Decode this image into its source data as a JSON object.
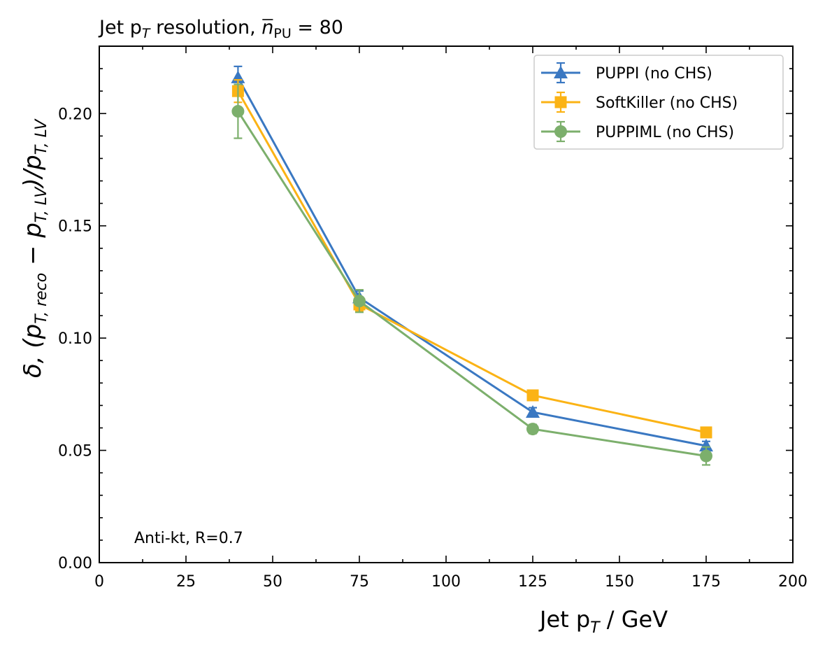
{
  "chart_data": {
    "type": "line",
    "title_main": "Jet p",
    "title_sub": "T",
    "title_rest": " resolution, ",
    "title_n": "n",
    "title_pu": "PU",
    "title_value": " = 80",
    "xlabel_prefix": "Jet p",
    "xlabel_sub": "T",
    "xlabel_suffix": " / GeV",
    "ylabel": "δ, (p",
    "ylabel_sub1": "T, reco",
    "ylabel_mid": " − p",
    "ylabel_sub2": "T, LV",
    "ylabel_close": ")/p",
    "ylabel_sub3": "T, LV",
    "xlim": [
      0,
      200
    ],
    "ylim": [
      0,
      0.23
    ],
    "xticks": [
      0,
      25,
      50,
      75,
      100,
      125,
      150,
      175,
      200
    ],
    "xtick_labels": [
      "0",
      "25",
      "50",
      "75",
      "100",
      "125",
      "150",
      "175",
      "200"
    ],
    "yticks": [
      0,
      0.05,
      0.1,
      0.15,
      0.2
    ],
    "ytick_labels": [
      "0.00",
      "0.05",
      "0.10",
      "0.15",
      "0.20"
    ],
    "grid": false,
    "legend_position": "top-right",
    "annotation": "Anti-kt, R=0.7",
    "x": [
      40,
      75,
      125,
      175
    ],
    "series": [
      {
        "name": "PUPPI (no CHS)",
        "color": "#3a78c2",
        "marker": "triangle",
        "values": [
          0.216,
          0.118,
          0.067,
          0.052
        ],
        "errors": [
          0.005,
          0.003,
          0.002,
          0.002
        ]
      },
      {
        "name": "SoftKiller (no CHS)",
        "color": "#fbb315",
        "marker": "square",
        "values": [
          0.21,
          0.115,
          0.0745,
          0.058
        ],
        "errors": [
          0.005,
          0.003,
          0.001,
          0.001
        ]
      },
      {
        "name": "PUPPIML (no CHS)",
        "color": "#7caf6c",
        "marker": "circle",
        "values": [
          0.201,
          0.1165,
          0.0595,
          0.0475
        ],
        "errors": [
          0.012,
          0.005,
          0.002,
          0.004
        ]
      }
    ]
  }
}
